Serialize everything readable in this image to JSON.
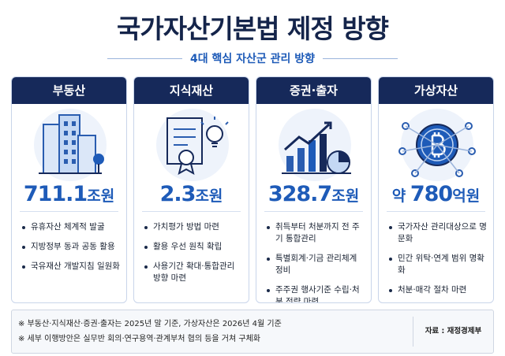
{
  "title": "국가자산기본법 제정 방향",
  "subtitle": "4대 핵심 자산군 관리 방향",
  "cards": [
    {
      "header": "부동산",
      "amount": "711.1",
      "unit": "조원",
      "items": [
        "유휴자산 체계적 발굴",
        "지방정부 동과 공동 활용",
        "국유재산 개발지침 일원화"
      ]
    },
    {
      "header": "지식재산",
      "amount": "2.3",
      "unit": "조원",
      "items": [
        "가치평가 방법 마련",
        "활용 우선 원칙 확립",
        "사용기간 확대·통합관리 방향 마련"
      ]
    },
    {
      "header": "증권·출자",
      "amount": "328.7",
      "unit": "조원",
      "items": [
        "취득부터 처분까지 전 주기 통합관리",
        "특별회계·기금 관리체계 정비",
        "주주권 행사기준 수립·처분 전략 마련"
      ]
    },
    {
      "header": "가상자산",
      "prefix": "약",
      "amount": "780",
      "unit": "억원",
      "items": [
        "국가자산 관리대상으로 명문화",
        "민간 위탁·연계 범위 명확화",
        "처분·매각 절차 마련"
      ]
    }
  ],
  "notes": [
    "※ 부동산·지식재산·증권·출자는 2025년 말 기준, 가상자산은 2026년 4월 기준",
    "※ 세부 이행방안은 실무반 회의·연구용역·관계부처 협의 등을 거쳐 구체화"
  ],
  "source": "자료 : 재정경제부"
}
